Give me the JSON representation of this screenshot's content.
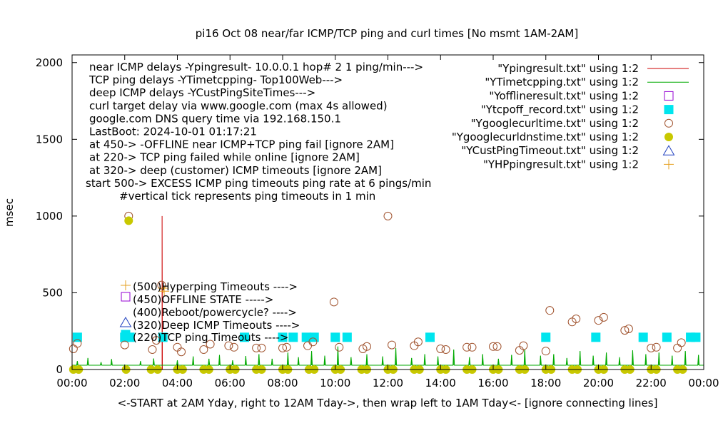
{
  "chart_data": {
    "type": "scatter",
    "title": "pi16 Oct 08  near/far ICMP/TCP ping and curl times [No msmt 1AM-2AM]",
    "xlabel": "<-START at 2AM Yday, right to 12AM Tday->, then wrap left to 1AM Tday<- [ignore connecting lines]",
    "ylabel": "msec",
    "xlim": [
      0,
      24
    ],
    "ylim": [
      0,
      2050
    ],
    "x_ticks": [
      {
        "v": 0,
        "label": "00:00"
      },
      {
        "v": 2,
        "label": "02:00"
      },
      {
        "v": 4,
        "label": "04:00"
      },
      {
        "v": 6,
        "label": "06:00"
      },
      {
        "v": 8,
        "label": "08:00"
      },
      {
        "v": 10,
        "label": "10:00"
      },
      {
        "v": 12,
        "label": "12:00"
      },
      {
        "v": 14,
        "label": "14:00"
      },
      {
        "v": 16,
        "label": "16:00"
      },
      {
        "v": 18,
        "label": "18:00"
      },
      {
        "v": 20,
        "label": "20:00"
      },
      {
        "v": 22,
        "label": "22:00"
      },
      {
        "v": 24,
        "label": "00:00"
      }
    ],
    "y_ticks": [
      {
        "v": 0,
        "label": "0"
      },
      {
        "v": 500,
        "label": "500"
      },
      {
        "v": 1000,
        "label": "1000"
      },
      {
        "v": 1500,
        "label": "1500"
      },
      {
        "v": 2000,
        "label": "2000"
      }
    ],
    "grid": false,
    "legend_position": "top-right",
    "info_lines": [
      "near ICMP delays -Ypingresult- 10.0.0.1 hop# 2 1 ping/min--->",
      "TCP ping delays -YTimetcpping- Top100Web--->",
      "deep ICMP delays -YCustPingSiteTimes--->",
      "curl target delay via www.google.com (max 4s allowed)",
      "google.com DNS query time via 192.168.150.1",
      "LastBoot: 2024-10-01 01:17:21",
      "at 450-> -OFFLINE near ICMP+TCP ping fail [ignore 2AM]",
      "at 220-> TCP ping failed while online [ignore 2AM]",
      "at 320-> deep (customer) ICMP timeouts [ignore 2AM]",
      "start 500-> EXCESS ICMP ping timeouts ping rate at 6 pings/min",
      "#vertical tick represents ping timeouts in 1 min"
    ],
    "marker_notes": [
      {
        "label": "(500)Hyperping Timeouts ---->",
        "y": 500
      },
      {
        "label": "(450)OFFLINE STATE ----->",
        "y": 450
      },
      {
        "label": "(400)Reboot/powercycle? ---->",
        "y": 400
      },
      {
        "label": "(320)Deep ICMP Timeouts ---->",
        "y": 320
      },
      {
        "label": "(220)TCP ping Timeouts ---->",
        "y": 220
      }
    ],
    "series": [
      {
        "name": "\"Ypingresult.txt\" using 1:2",
        "style": "line",
        "color": "#cc0000",
        "points": [
          [
            3.42,
            0
          ],
          [
            3.42,
            1000
          ],
          [
            3.43,
            0
          ]
        ]
      },
      {
        "name": "\"YTimetcpping.txt\" using 1:2",
        "style": "line",
        "color": "#00aa00",
        "baseline": 28,
        "spikes": [
          [
            0.2,
            55
          ],
          [
            0.6,
            75
          ],
          [
            1.1,
            48
          ],
          [
            1.5,
            68
          ],
          [
            2.6,
            55
          ],
          [
            3.1,
            72
          ],
          [
            4.0,
            60
          ],
          [
            4.6,
            85
          ],
          [
            5.2,
            70
          ],
          [
            5.6,
            95
          ],
          [
            6.1,
            60
          ],
          [
            6.6,
            88
          ],
          [
            7.1,
            100
          ],
          [
            7.6,
            70
          ],
          [
            8.2,
            110
          ],
          [
            8.6,
            80
          ],
          [
            9.1,
            120
          ],
          [
            9.6,
            90
          ],
          [
            10.1,
            150
          ],
          [
            10.6,
            80
          ],
          [
            11.2,
            100
          ],
          [
            11.8,
            85
          ],
          [
            12.3,
            140
          ],
          [
            12.9,
            75
          ],
          [
            13.4,
            100
          ],
          [
            13.9,
            85
          ],
          [
            14.5,
            130
          ],
          [
            15.1,
            80
          ],
          [
            15.6,
            100
          ],
          [
            16.2,
            70
          ],
          [
            16.7,
            95
          ],
          [
            17.2,
            130
          ],
          [
            17.8,
            90
          ],
          [
            18.3,
            100
          ],
          [
            18.8,
            75
          ],
          [
            19.3,
            120
          ],
          [
            19.8,
            90
          ],
          [
            20.3,
            110
          ],
          [
            20.8,
            80
          ],
          [
            21.3,
            125
          ],
          [
            21.8,
            100
          ],
          [
            22.3,
            110
          ],
          [
            22.8,
            90
          ],
          [
            23.3,
            120
          ],
          [
            23.8,
            95
          ]
        ]
      },
      {
        "name": "\"Yofflineresult.txt\" using 1:2",
        "style": "open-square",
        "color": "#9400d3",
        "points": []
      },
      {
        "name": "\"Ytcpoff_record.txt\" using 1:2",
        "style": "filled-square",
        "color": "#00e5ee",
        "points": [
          [
            0.2,
            210
          ],
          [
            2.0,
            210
          ],
          [
            2.2,
            210
          ],
          [
            3.45,
            210
          ],
          [
            6.55,
            210
          ],
          [
            8.0,
            210
          ],
          [
            8.4,
            210
          ],
          [
            8.9,
            210
          ],
          [
            9.2,
            210
          ],
          [
            10.0,
            210
          ],
          [
            10.45,
            210
          ],
          [
            13.6,
            210
          ],
          [
            18.0,
            210
          ],
          [
            19.9,
            210
          ],
          [
            21.7,
            210
          ],
          [
            22.6,
            210
          ],
          [
            23.5,
            210
          ],
          [
            23.7,
            210
          ]
        ]
      },
      {
        "name": "\"Ygooglecurltime.txt\" using 1:2",
        "style": "open-circle",
        "color": "#a0522d",
        "points": [
          [
            0.05,
            135
          ],
          [
            0.2,
            170
          ],
          [
            2.0,
            160
          ],
          [
            2.15,
            1000
          ],
          [
            3.05,
            130
          ],
          [
            3.2,
            190
          ],
          [
            3.4,
            550
          ],
          [
            4.0,
            145
          ],
          [
            4.15,
            115
          ],
          [
            5.0,
            130
          ],
          [
            5.25,
            165
          ],
          [
            5.95,
            155
          ],
          [
            6.15,
            145
          ],
          [
            7.0,
            140
          ],
          [
            7.2,
            140
          ],
          [
            8.0,
            140
          ],
          [
            8.15,
            145
          ],
          [
            8.95,
            155
          ],
          [
            9.15,
            180
          ],
          [
            9.95,
            440
          ],
          [
            10.15,
            145
          ],
          [
            11.05,
            135
          ],
          [
            11.2,
            150
          ],
          [
            12.0,
            1000
          ],
          [
            12.15,
            160
          ],
          [
            13.0,
            155
          ],
          [
            13.15,
            180
          ],
          [
            14.0,
            135
          ],
          [
            14.2,
            130
          ],
          [
            15.0,
            145
          ],
          [
            15.2,
            145
          ],
          [
            16.0,
            150
          ],
          [
            16.15,
            150
          ],
          [
            17.0,
            125
          ],
          [
            17.15,
            155
          ],
          [
            18.0,
            120
          ],
          [
            18.15,
            385
          ],
          [
            19.0,
            310
          ],
          [
            19.15,
            330
          ],
          [
            20.0,
            320
          ],
          [
            20.2,
            340
          ],
          [
            21.0,
            255
          ],
          [
            21.15,
            265
          ],
          [
            22.0,
            140
          ],
          [
            22.2,
            145
          ],
          [
            23.0,
            140
          ],
          [
            23.15,
            175
          ]
        ]
      },
      {
        "name": "\"Ygooglecurldnstime.txt\" using 1:2",
        "style": "filled-circle",
        "color": "#c8c800",
        "points": [
          [
            0.05,
            0
          ],
          [
            0.25,
            0
          ],
          [
            2.05,
            0
          ],
          [
            2.15,
            970
          ],
          [
            3.0,
            0
          ],
          [
            3.25,
            0
          ],
          [
            4.0,
            0
          ],
          [
            4.2,
            0
          ],
          [
            5.0,
            0
          ],
          [
            5.2,
            0
          ],
          [
            6.0,
            0
          ],
          [
            6.2,
            0
          ],
          [
            7.0,
            0
          ],
          [
            7.2,
            0
          ],
          [
            8.0,
            0
          ],
          [
            8.2,
            0
          ],
          [
            9.0,
            0
          ],
          [
            9.2,
            0
          ],
          [
            10.0,
            0
          ],
          [
            10.2,
            0
          ],
          [
            11.0,
            0
          ],
          [
            11.2,
            0
          ],
          [
            12.0,
            0
          ],
          [
            12.2,
            0
          ],
          [
            13.0,
            0
          ],
          [
            13.2,
            0
          ],
          [
            14.0,
            0
          ],
          [
            14.2,
            0
          ],
          [
            15.0,
            0
          ],
          [
            15.2,
            0
          ],
          [
            16.0,
            0
          ],
          [
            16.2,
            0
          ],
          [
            17.0,
            0
          ],
          [
            17.2,
            0
          ],
          [
            18.0,
            0
          ],
          [
            18.2,
            0
          ],
          [
            19.0,
            0
          ],
          [
            19.2,
            0
          ],
          [
            20.0,
            0
          ],
          [
            20.2,
            0
          ],
          [
            21.0,
            0
          ],
          [
            21.2,
            0
          ],
          [
            22.0,
            0
          ],
          [
            22.2,
            0
          ],
          [
            23.0,
            0
          ],
          [
            23.2,
            0
          ]
        ]
      },
      {
        "name": "\"YCustPingTimeout.txt\" using 1:2",
        "style": "open-triangle",
        "color": "#1e3fbf",
        "points": []
      },
      {
        "name": "\"YHPpingresult.txt\" using 1:2",
        "style": "plus",
        "color": "#e6a020",
        "points": [
          [
            3.45,
            530
          ],
          [
            3.5,
            510
          ]
        ]
      }
    ]
  }
}
